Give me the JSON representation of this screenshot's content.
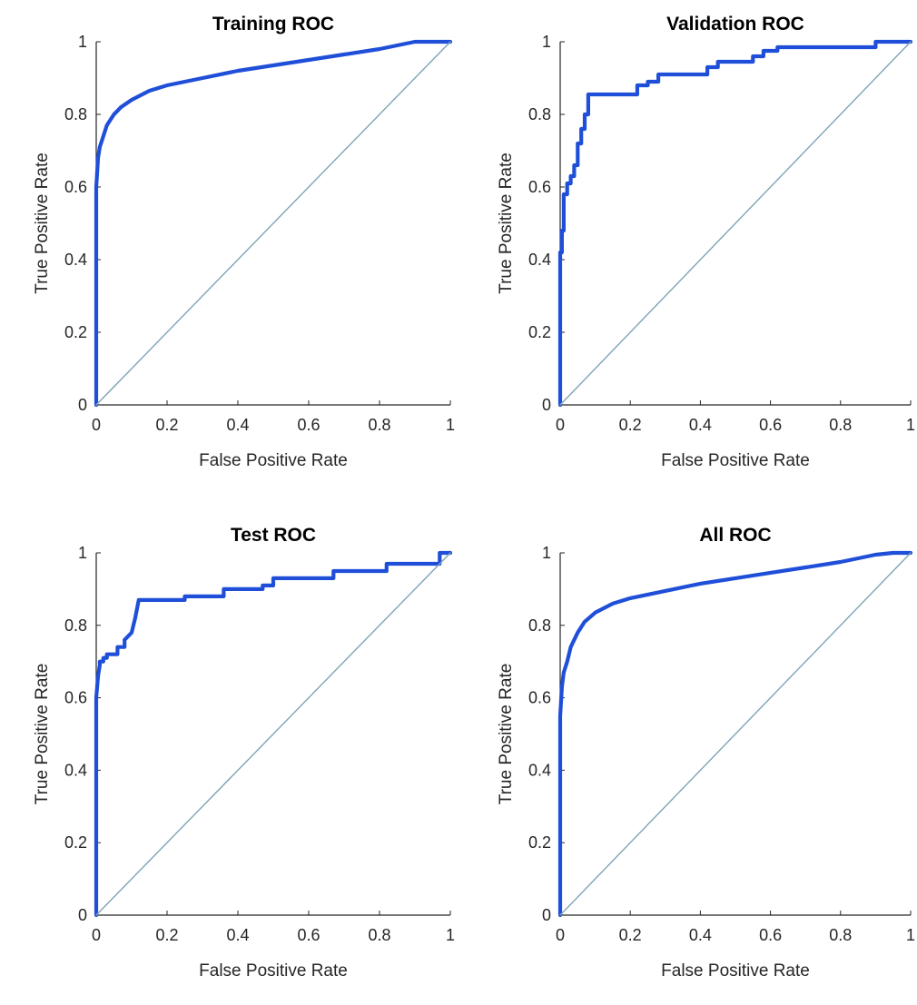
{
  "chart_data": [
    {
      "type": "line",
      "title": "Training ROC",
      "xlabel": "False Positive Rate",
      "ylabel": "True Positive Rate",
      "xlim": [
        0,
        1
      ],
      "ylim": [
        0,
        1
      ],
      "xticks": [
        "0",
        "0.2",
        "0.4",
        "0.6",
        "0.8",
        "1"
      ],
      "yticks": [
        "0",
        "0.2",
        "0.4",
        "0.6",
        "0.8",
        "1"
      ],
      "grid": false,
      "series": [
        {
          "color": "#1f4fd8",
          "x": [
            0,
            0,
            0.005,
            0.01,
            0.02,
            0.03,
            0.05,
            0.07,
            0.1,
            0.15,
            0.2,
            0.25,
            0.3,
            0.4,
            0.5,
            0.6,
            0.7,
            0.8,
            0.85,
            0.9,
            0.95,
            1
          ],
          "y": [
            0,
            0.6,
            0.68,
            0.71,
            0.74,
            0.77,
            0.8,
            0.82,
            0.84,
            0.865,
            0.88,
            0.89,
            0.9,
            0.92,
            0.935,
            0.95,
            0.965,
            0.98,
            0.99,
            1,
            1,
            1
          ]
        },
        {
          "color": "#7fa3b6",
          "x": [
            0,
            1
          ],
          "y": [
            0,
            1
          ]
        }
      ]
    },
    {
      "type": "line",
      "title": "Validation ROC",
      "xlabel": "False Positive Rate",
      "ylabel": "True Positive Rate",
      "xlim": [
        0,
        1
      ],
      "ylim": [
        0,
        1
      ],
      "xticks": [
        "0",
        "0.2",
        "0.4",
        "0.6",
        "0.8",
        "1"
      ],
      "yticks": [
        "0",
        "0.2",
        "0.4",
        "0.6",
        "0.8",
        "1"
      ],
      "grid": false,
      "series": [
        {
          "color": "#1f4fd8",
          "x": [
            0,
            0,
            0.005,
            0.005,
            0.01,
            0.01,
            0.02,
            0.02,
            0.03,
            0.03,
            0.04,
            0.04,
            0.05,
            0.05,
            0.06,
            0.06,
            0.07,
            0.07,
            0.08,
            0.08,
            0.22,
            0.22,
            0.25,
            0.25,
            0.28,
            0.28,
            0.42,
            0.42,
            0.45,
            0.45,
            0.55,
            0.55,
            0.58,
            0.58,
            0.62,
            0.62,
            0.9,
            0.9,
            1
          ],
          "y": [
            0,
            0.42,
            0.42,
            0.48,
            0.48,
            0.58,
            0.58,
            0.61,
            0.61,
            0.63,
            0.63,
            0.66,
            0.66,
            0.72,
            0.72,
            0.76,
            0.76,
            0.8,
            0.8,
            0.855,
            0.855,
            0.88,
            0.88,
            0.89,
            0.89,
            0.91,
            0.91,
            0.93,
            0.93,
            0.945,
            0.945,
            0.96,
            0.96,
            0.975,
            0.975,
            0.985,
            0.985,
            1,
            1
          ]
        },
        {
          "color": "#7fa3b6",
          "x": [
            0,
            1
          ],
          "y": [
            0,
            1
          ]
        }
      ]
    },
    {
      "type": "line",
      "title": "Test ROC",
      "xlabel": "False Positive Rate",
      "ylabel": "True Positive Rate",
      "xlim": [
        0,
        1
      ],
      "ylim": [
        0,
        1
      ],
      "xticks": [
        "0",
        "0.2",
        "0.4",
        "0.6",
        "0.8",
        "1"
      ],
      "yticks": [
        "0",
        "0.2",
        "0.4",
        "0.6",
        "0.8",
        "1"
      ],
      "grid": false,
      "series": [
        {
          "color": "#1f4fd8",
          "x": [
            0,
            0,
            0.005,
            0.01,
            0.01,
            0.02,
            0.02,
            0.03,
            0.03,
            0.06,
            0.06,
            0.08,
            0.08,
            0.1,
            0.11,
            0.12,
            0.12,
            0.25,
            0.25,
            0.36,
            0.36,
            0.47,
            0.47,
            0.5,
            0.5,
            0.67,
            0.67,
            0.82,
            0.82,
            0.97,
            0.97,
            1
          ],
          "y": [
            0,
            0.6,
            0.66,
            0.69,
            0.7,
            0.7,
            0.71,
            0.71,
            0.72,
            0.72,
            0.74,
            0.74,
            0.76,
            0.78,
            0.82,
            0.87,
            0.87,
            0.87,
            0.88,
            0.88,
            0.9,
            0.9,
            0.91,
            0.91,
            0.93,
            0.93,
            0.95,
            0.95,
            0.97,
            0.97,
            1,
            1
          ]
        },
        {
          "color": "#7fa3b6",
          "x": [
            0,
            1
          ],
          "y": [
            0,
            1
          ]
        }
      ]
    },
    {
      "type": "line",
      "title": "All ROC",
      "xlabel": "False Positive Rate",
      "ylabel": "True Positive Rate",
      "xlim": [
        0,
        1
      ],
      "ylim": [
        0,
        1
      ],
      "xticks": [
        "0",
        "0.2",
        "0.4",
        "0.6",
        "0.8",
        "1"
      ],
      "yticks": [
        "0",
        "0.2",
        "0.4",
        "0.6",
        "0.8",
        "1"
      ],
      "grid": false,
      "series": [
        {
          "color": "#1f4fd8",
          "x": [
            0,
            0,
            0.005,
            0.01,
            0.02,
            0.03,
            0.05,
            0.07,
            0.1,
            0.15,
            0.2,
            0.25,
            0.3,
            0.4,
            0.5,
            0.6,
            0.7,
            0.8,
            0.85,
            0.9,
            0.95,
            1
          ],
          "y": [
            0,
            0.55,
            0.63,
            0.67,
            0.7,
            0.74,
            0.78,
            0.81,
            0.835,
            0.86,
            0.875,
            0.885,
            0.895,
            0.915,
            0.93,
            0.945,
            0.96,
            0.975,
            0.985,
            0.995,
            1,
            1
          ]
        },
        {
          "color": "#7fa3b6",
          "x": [
            0,
            1
          ],
          "y": [
            0,
            1
          ]
        }
      ]
    }
  ]
}
